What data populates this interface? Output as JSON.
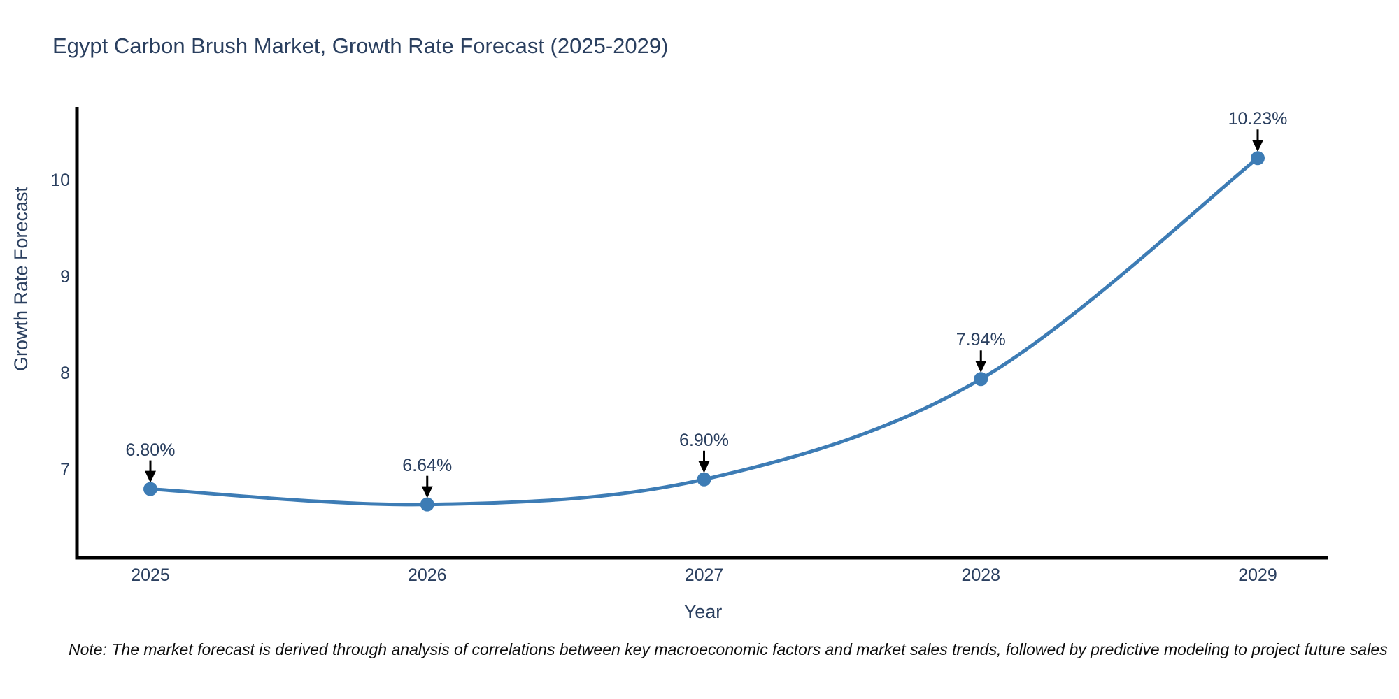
{
  "title": "Egypt Carbon Brush Market, Growth Rate Forecast (2025-2029)",
  "note": "Note: The market forecast is derived through analysis of correlations between key macroeconomic factors and market sales trends, followed by predictive modeling to project future sales",
  "chart_data": {
    "type": "line",
    "title": "Egypt Carbon Brush Market, Growth Rate Forecast (2025-2029)",
    "xlabel": "Year",
    "ylabel": "Growth Rate Forecast",
    "categories": [
      "2025",
      "2026",
      "2027",
      "2028",
      "2029"
    ],
    "x": [
      2025,
      2026,
      2027,
      2028,
      2029
    ],
    "series": [
      {
        "name": "Growth Rate Forecast",
        "values": [
          6.8,
          6.64,
          6.9,
          7.94,
          10.23
        ],
        "labels": [
          "6.80%",
          "6.64%",
          "6.90%",
          "7.94%",
          "10.23%"
        ]
      }
    ],
    "yticks": [
      7,
      8,
      9,
      10
    ],
    "ylim": [
      6.0,
      10.75
    ],
    "line_shape": "spline",
    "markers": true,
    "grid": false,
    "legend_position": "none",
    "colors": {
      "line": "#3d7cb5",
      "marker": "#3d7cb5",
      "arrow": "#000000",
      "axis_line": "#000000",
      "text": "#2a3f5f",
      "note_text": "#0d0d0d",
      "background": "#ffffff"
    }
  }
}
